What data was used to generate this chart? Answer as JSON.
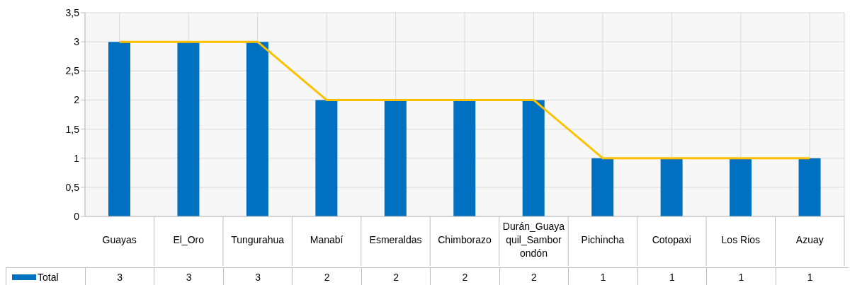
{
  "chart_data": {
    "type": "bar",
    "categories": [
      "Guayas",
      "El_Oro",
      "Tungurahua",
      "Manabí",
      "Esmeraldas",
      "Chimborazo",
      "Durán_Guayaquil_Samborondón",
      "Pichincha",
      "Cotopaxi",
      "Los Rios",
      "Azuay"
    ],
    "series": [
      {
        "name": "Total",
        "color": "#0070c0",
        "values": [
          3,
          3,
          3,
          2,
          2,
          2,
          2,
          1,
          1,
          1,
          1
        ],
        "value_labels": [
          "3",
          "3",
          "3",
          "2",
          "2",
          "2",
          "2",
          "1",
          "1",
          "1",
          "1"
        ]
      },
      {
        "type": "line",
        "color": "#ffc000",
        "values": [
          3,
          3,
          3,
          2,
          2,
          2,
          2,
          1,
          1,
          1,
          1
        ]
      }
    ],
    "ylim": [
      0,
      3.5
    ],
    "yticks": [
      0,
      {
        "value": 0.5,
        "label": "0,5"
      },
      1,
      {
        "value": 1.5,
        "label": "1,5"
      },
      2,
      {
        "value": 2.5,
        "label": "2,5"
      },
      3,
      {
        "value": 3.5,
        "label": "3,5"
      }
    ],
    "grid": true,
    "legend": "bottom",
    "marker": "none"
  }
}
